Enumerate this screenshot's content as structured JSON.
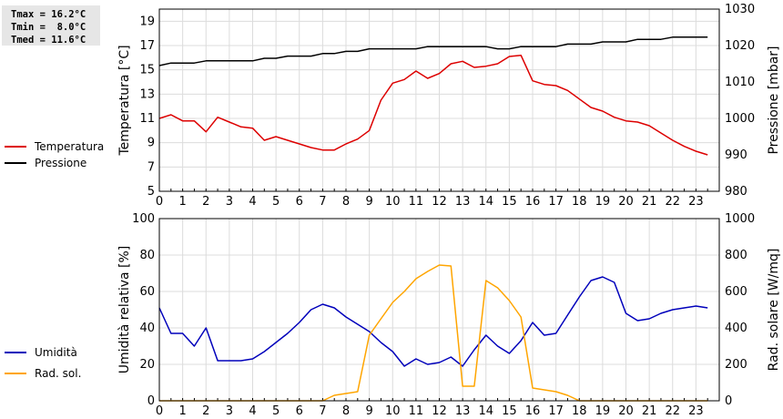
{
  "stats": {
    "tmax": "Tmax = 16.2°C",
    "tmin": "Tmin =  8.0°C",
    "tmed": "Tmed = 11.6°C"
  },
  "colors": {
    "temperature": "#dd0000",
    "pressure": "#000000",
    "humidity": "#0000bb",
    "radiation": "#ffa500",
    "grid": "#dcdcdc"
  },
  "chart_data": [
    {
      "type": "line",
      "xlim": [
        0,
        24
      ],
      "x_ticks": [
        0,
        1,
        2,
        3,
        4,
        5,
        6,
        7,
        8,
        9,
        10,
        11,
        12,
        13,
        14,
        15,
        16,
        17,
        18,
        19,
        20,
        21,
        22,
        23
      ],
      "ylabel": "Temperatura [°C]",
      "ylim": [
        5,
        20
      ],
      "y_ticks": [
        5,
        7,
        9,
        11,
        13,
        15,
        17,
        19
      ],
      "y2label": "Pressione [mbar]",
      "y2lim": [
        980,
        1030
      ],
      "y2_ticks": [
        980,
        990,
        1000,
        1010,
        1020,
        1030
      ],
      "grid": true,
      "legend_position": "left",
      "series": [
        {
          "name": "Temperatura",
          "axis": "left",
          "x": [
            0,
            0.5,
            1,
            1.5,
            2,
            2.5,
            3,
            3.5,
            4,
            4.5,
            5,
            5.5,
            6,
            6.5,
            7,
            7.5,
            8,
            8.5,
            9,
            9.5,
            10,
            10.5,
            11,
            11.5,
            12,
            12.5,
            13,
            13.5,
            14,
            14.5,
            15,
            15.5,
            16,
            16.5,
            17,
            17.5,
            18,
            18.5,
            19,
            19.5,
            20,
            20.5,
            21,
            21.5,
            22,
            22.5,
            23,
            23.5
          ],
          "values": [
            11.0,
            11.3,
            10.8,
            10.8,
            9.9,
            11.1,
            10.7,
            10.3,
            10.2,
            9.2,
            9.5,
            9.2,
            8.9,
            8.6,
            8.4,
            8.4,
            8.9,
            9.3,
            10.0,
            12.5,
            13.9,
            14.2,
            14.9,
            14.3,
            14.7,
            15.5,
            15.7,
            15.2,
            15.3,
            15.5,
            16.1,
            16.2,
            14.1,
            13.8,
            13.7,
            13.3,
            12.6,
            11.9,
            11.6,
            11.1,
            10.8,
            10.7,
            10.4,
            9.8,
            9.2,
            8.7,
            8.3,
            8.0
          ]
        },
        {
          "name": "Pressione",
          "axis": "right",
          "x": [
            0,
            0.5,
            1,
            1.5,
            2,
            2.5,
            3,
            3.5,
            4,
            4.5,
            5,
            5.5,
            6,
            6.5,
            7,
            7.5,
            8,
            8.5,
            9,
            9.5,
            10,
            10.5,
            11,
            11.5,
            12,
            12.5,
            13,
            13.5,
            14,
            14.5,
            15,
            15.5,
            16,
            16.5,
            17,
            17.5,
            18,
            18.5,
            19,
            19.5,
            20,
            20.5,
            21,
            21.5,
            22,
            22.5,
            23,
            23.5
          ],
          "values": [
            1014.5,
            1015.2,
            1015.2,
            1015.2,
            1015.8,
            1015.8,
            1015.8,
            1015.8,
            1015.8,
            1016.5,
            1016.5,
            1017.1,
            1017.1,
            1017.1,
            1017.8,
            1017.8,
            1018.4,
            1018.4,
            1019.1,
            1019.1,
            1019.1,
            1019.1,
            1019.1,
            1019.7,
            1019.7,
            1019.7,
            1019.7,
            1019.7,
            1019.7,
            1019.1,
            1019.1,
            1019.7,
            1019.7,
            1019.7,
            1019.7,
            1020.4,
            1020.4,
            1020.4,
            1021.0,
            1021.0,
            1021.0,
            1021.7,
            1021.7,
            1021.7,
            1022.3,
            1022.3,
            1022.3,
            1022.3
          ]
        }
      ]
    },
    {
      "type": "line",
      "xlim": [
        0,
        24
      ],
      "x_ticks": [
        0,
        1,
        2,
        3,
        4,
        5,
        6,
        7,
        8,
        9,
        10,
        11,
        12,
        13,
        14,
        15,
        16,
        17,
        18,
        19,
        20,
        21,
        22,
        23
      ],
      "ylabel": "Umidità relativa [%]",
      "ylim": [
        0,
        100
      ],
      "y_ticks": [
        0,
        20,
        40,
        60,
        80,
        100
      ],
      "y2label": "Rad. solare [W/mq]",
      "y2lim": [
        0,
        1000
      ],
      "y2_ticks": [
        0,
        200,
        400,
        600,
        800,
        1000
      ],
      "grid": true,
      "legend_position": "left",
      "series": [
        {
          "name": "Umidità",
          "axis": "left",
          "x": [
            0,
            0.5,
            1,
            1.5,
            2,
            2.5,
            3,
            3.5,
            4,
            4.5,
            5,
            5.5,
            6,
            6.5,
            7,
            7.5,
            8,
            8.5,
            9,
            9.5,
            10,
            10.5,
            11,
            11.5,
            12,
            12.5,
            13,
            13.5,
            14,
            14.5,
            15,
            15.5,
            16,
            16.5,
            17,
            17.5,
            18,
            18.5,
            19,
            19.5,
            20,
            20.5,
            21,
            21.5,
            22,
            22.5,
            23,
            23.5
          ],
          "values": [
            51,
            37,
            37,
            30,
            40,
            22,
            22,
            22,
            23,
            27,
            32,
            37,
            43,
            50,
            53,
            51,
            46,
            42,
            38,
            32,
            27,
            19,
            23,
            20,
            21,
            24,
            19,
            28,
            36,
            30,
            26,
            33,
            43,
            36,
            37,
            47,
            57,
            66,
            68,
            65,
            48,
            44,
            45,
            48,
            50,
            51,
            52,
            51
          ]
        },
        {
          "name": "Rad. sol.",
          "axis": "right",
          "x": [
            0,
            0.5,
            1,
            1.5,
            2,
            2.5,
            3,
            3.5,
            4,
            4.5,
            5,
            5.5,
            6,
            6.5,
            7,
            7.5,
            8,
            8.5,
            9,
            9.5,
            10,
            10.5,
            11,
            11.5,
            12,
            12.5,
            13,
            13.5,
            14,
            14.5,
            15,
            15.5,
            16,
            16.5,
            17,
            17.5,
            18,
            18.5,
            19,
            19.5,
            20,
            20.5,
            21,
            21.5,
            22,
            22.5,
            23,
            23.5
          ],
          "values": [
            0,
            0,
            0,
            0,
            0,
            0,
            0,
            0,
            0,
            0,
            0,
            0,
            0,
            0,
            0,
            30,
            40,
            50,
            360,
            450,
            540,
            600,
            670,
            710,
            745,
            740,
            80,
            80,
            660,
            620,
            550,
            460,
            70,
            60,
            50,
            30,
            0,
            0,
            0,
            0,
            0,
            0,
            0,
            0,
            0,
            0,
            0,
            0
          ]
        }
      ]
    }
  ]
}
